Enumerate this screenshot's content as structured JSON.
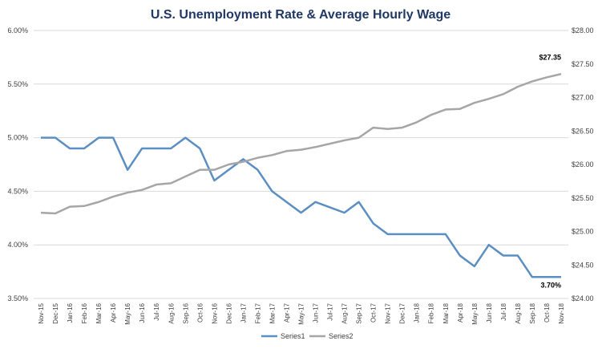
{
  "chart_data": {
    "type": "line",
    "title": "U.S. Unemployment Rate & Average Hourly Wage",
    "categories": [
      "Nov-15",
      "Dec-15",
      "Jan-16",
      "Feb-16",
      "Mar-16",
      "Apr-16",
      "May-16",
      "Jun-16",
      "Jul-16",
      "Aug-16",
      "Sep-16",
      "Oct-16",
      "Nov-16",
      "Dec-16",
      "Jan-17",
      "Feb-17",
      "Mar-17",
      "Apr-17",
      "May-17",
      "Jun-17",
      "Jul-17",
      "Aug-17",
      "Sep-17",
      "Oct-17",
      "Nov-17",
      "Dec-17",
      "Jan-18",
      "Feb-18",
      "Mar-18",
      "Apr-18",
      "May-18",
      "Jun-18",
      "Jul-18",
      "Aug-18",
      "Sep-18",
      "Oct-18",
      "Nov-18"
    ],
    "series": [
      {
        "name": "Series1",
        "axis": "left",
        "color": "#5b8fc3",
        "values": [
          5.0,
          5.0,
          4.9,
          4.9,
          5.0,
          5.0,
          4.7,
          4.9,
          4.9,
          4.9,
          5.0,
          4.9,
          4.6,
          4.7,
          4.8,
          4.7,
          4.5,
          4.4,
          4.3,
          4.4,
          4.35,
          4.3,
          4.4,
          4.2,
          4.1,
          4.1,
          4.1,
          4.1,
          4.1,
          3.9,
          3.8,
          4.0,
          3.9,
          3.9,
          3.7,
          3.7,
          3.7
        ]
      },
      {
        "name": "Series2",
        "axis": "right",
        "color": "#a6a6a6",
        "values": [
          25.28,
          25.27,
          25.37,
          25.38,
          25.44,
          25.52,
          25.58,
          25.62,
          25.7,
          25.72,
          25.82,
          25.92,
          25.92,
          26.0,
          26.04,
          26.1,
          26.14,
          26.2,
          26.22,
          26.26,
          26.31,
          26.36,
          26.4,
          26.55,
          26.53,
          26.55,
          26.63,
          26.74,
          26.82,
          26.83,
          26.92,
          26.98,
          27.05,
          27.16,
          27.24,
          27.3,
          27.35
        ]
      }
    ],
    "y_left": {
      "min": 3.5,
      "max": 6.0,
      "step": 0.5,
      "ticks": [
        "3.50%",
        "4.00%",
        "4.50%",
        "5.00%",
        "5.50%",
        "6.00%"
      ]
    },
    "y_right": {
      "min": 24.0,
      "max": 28.0,
      "step": 0.5,
      "ticks": [
        "$24.00",
        "$24.50",
        "$25.00",
        "$25.50",
        "$26.00",
        "$26.50",
        "$27.00",
        "$27.50",
        "$28.00"
      ]
    },
    "grid": true,
    "legend_position": "bottom",
    "annotations": [
      {
        "series": 1,
        "index": 36,
        "text": "$27.35"
      },
      {
        "series": 0,
        "index": 36,
        "text": "3.70%"
      }
    ]
  }
}
